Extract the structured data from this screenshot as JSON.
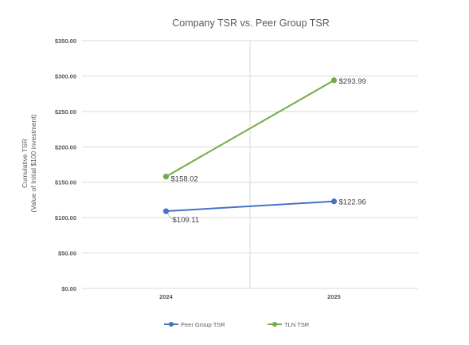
{
  "chart_data": {
    "type": "line",
    "title": "Company TSR vs. Peer Group TSR",
    "ylabel_line1": "Cumulative TSR",
    "ylabel_line2": "(Value of Initial $100 investment)",
    "xlabel": "",
    "categories": [
      "2024",
      "2025"
    ],
    "ylim": [
      0,
      350
    ],
    "yticks": [
      0,
      50,
      100,
      150,
      200,
      250,
      300,
      350
    ],
    "ytick_labels": [
      "$0.00",
      "$50.00",
      "$100.00",
      "$150.00",
      "$200.00",
      "$250.00",
      "$300.00",
      "$350.00"
    ],
    "grid": true,
    "legend_position": "bottom",
    "series": [
      {
        "name": "Peer Group TSR",
        "color": "#4472C4",
        "values": [
          109.11,
          122.96
        ],
        "labels": [
          "$109.11",
          "$122.96"
        ]
      },
      {
        "name": "TLN TSR",
        "color": "#70AD47",
        "values": [
          158.02,
          293.99
        ],
        "labels": [
          "$158.02",
          "$293.99"
        ]
      }
    ]
  }
}
